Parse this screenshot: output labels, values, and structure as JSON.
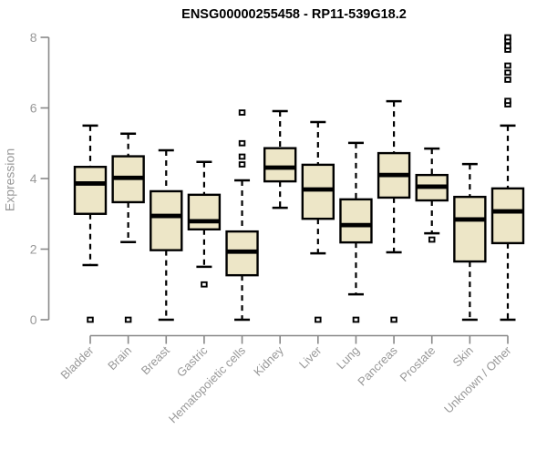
{
  "chart_data": {
    "type": "boxplot",
    "title": "ENSG00000255458 - RP11-539G18.2",
    "xlabel": "",
    "ylabel": "Expression",
    "ylim": [
      0,
      8
    ],
    "yticks": [
      0,
      2,
      4,
      6,
      8
    ],
    "grid": false,
    "legend": null,
    "colors": {
      "box_fill": "#ede6c7",
      "box_border": "#000000",
      "median": "#000000",
      "whisker": "#000000",
      "outlier_fill": "#ffffff",
      "axis": "#888888",
      "tick_label": "#999999",
      "title": "#000000",
      "background": "#ffffff"
    },
    "categories": [
      "Bladder",
      "Brain",
      "Breast",
      "Gastric",
      "Hematopoietic cells",
      "Kidney",
      "Liver",
      "Lung",
      "Pancreas",
      "Prostate",
      "Skin",
      "Unknown / Other"
    ],
    "series": [
      {
        "category": "Bladder",
        "whisker_low": 1.55,
        "q1": 3.0,
        "median": 3.86,
        "q3": 4.33,
        "whisker_high": 5.5,
        "outliers": [
          0
        ]
      },
      {
        "category": "Brain",
        "whisker_low": 2.2,
        "q1": 3.33,
        "median": 4.02,
        "q3": 4.63,
        "whisker_high": 5.27,
        "outliers": [
          0
        ]
      },
      {
        "category": "Breast",
        "whisker_low": 0.0,
        "q1": 1.97,
        "median": 2.94,
        "q3": 3.64,
        "whisker_high": 4.8,
        "outliers": []
      },
      {
        "category": "Gastric",
        "whisker_low": 1.5,
        "q1": 2.56,
        "median": 2.79,
        "q3": 3.54,
        "whisker_high": 4.47,
        "outliers": [
          1.0
        ]
      },
      {
        "category": "Hematopoietic cells",
        "whisker_low": 0.0,
        "q1": 1.26,
        "median": 1.93,
        "q3": 2.5,
        "whisker_high": 3.95,
        "outliers": [
          4.4,
          4.62,
          5.0,
          5.87
        ]
      },
      {
        "category": "Kidney",
        "whisker_low": 3.17,
        "q1": 3.92,
        "median": 4.31,
        "q3": 4.86,
        "whisker_high": 5.91,
        "outliers": []
      },
      {
        "category": "Liver",
        "whisker_low": 1.88,
        "q1": 2.86,
        "median": 3.69,
        "q3": 4.39,
        "whisker_high": 5.6,
        "outliers": [
          0
        ]
      },
      {
        "category": "Lung",
        "whisker_low": 0.72,
        "q1": 2.19,
        "median": 2.68,
        "q3": 3.41,
        "whisker_high": 5.01,
        "outliers": [
          0
        ]
      },
      {
        "category": "Pancreas",
        "whisker_low": 1.91,
        "q1": 3.46,
        "median": 4.1,
        "q3": 4.72,
        "whisker_high": 6.19,
        "outliers": [
          0
        ]
      },
      {
        "category": "Prostate",
        "whisker_low": 2.45,
        "q1": 3.38,
        "median": 3.77,
        "q3": 4.1,
        "whisker_high": 4.85,
        "outliers": [
          2.27
        ]
      },
      {
        "category": "Skin",
        "whisker_low": 0.0,
        "q1": 1.65,
        "median": 2.84,
        "q3": 3.48,
        "whisker_high": 4.41,
        "outliers": []
      },
      {
        "category": "Unknown / Other",
        "whisker_low": 0.0,
        "q1": 2.17,
        "median": 3.07,
        "q3": 3.72,
        "whisker_high": 5.5,
        "outliers": [
          6.1,
          6.2,
          6.8,
          7.0,
          7.2,
          7.65,
          7.75,
          7.9,
          8.0
        ]
      }
    ]
  }
}
